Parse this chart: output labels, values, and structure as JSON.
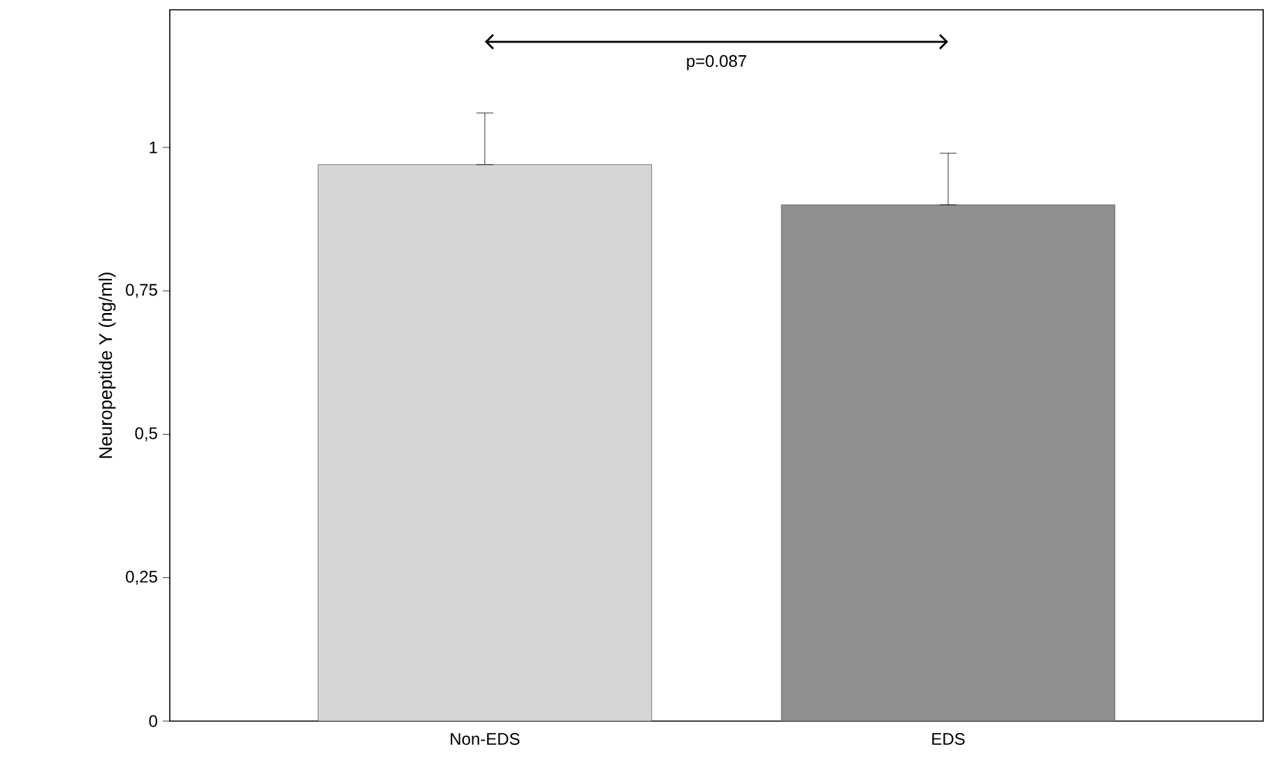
{
  "chart_data": {
    "type": "bar",
    "ylabel": "Neuropeptide Y (ng/ml)",
    "categories": [
      "Non-EDS",
      "EDS"
    ],
    "values": [
      0.97,
      0.9
    ],
    "colors": [
      "#d6d6d6",
      "#8f8f8f"
    ],
    "errors": [
      [
        0.97,
        1.06
      ],
      [
        0.9,
        0.99
      ]
    ],
    "ylim": [
      0,
      1.24
    ],
    "yticks": [
      0,
      {
        "value": 0.25,
        "label": "0,25"
      },
      {
        "value": 0.5,
        "label": "0,5"
      },
      {
        "value": 0.75,
        "label": "0,75"
      },
      1
    ],
    "annotations": [
      "p=0.087"
    ],
    "grid": false
  }
}
